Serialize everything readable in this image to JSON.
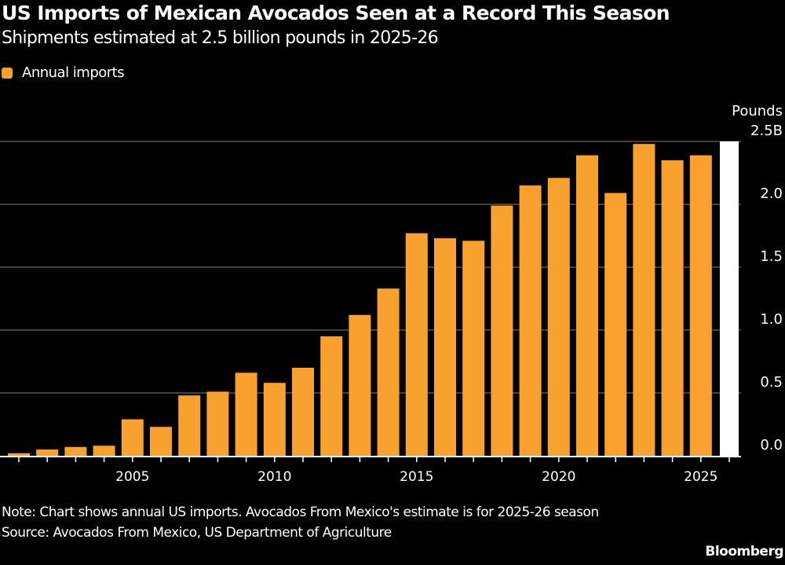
{
  "header": {
    "title": "US Imports of Mexican Avocados Seen at a Record This Season",
    "subtitle": "Shipments estimated at 2.5 billion pounds in 2025-26"
  },
  "footer": {
    "note": "Note: Chart shows annual US imports. Avocados From Mexico's estimate is for 2025-26 season",
    "source": "Source: Avocados From Mexico, US Department of Agriculture",
    "brand": "Bloomberg"
  },
  "colors": {
    "background": "#000000",
    "bar": "#f9a12e",
    "estimate_bar": "#ffffff",
    "grid": "#555555",
    "text": "#ffffff"
  },
  "chart_data": {
    "type": "bar",
    "title": "US Imports of Mexican Avocados Seen at a Record This Season",
    "subtitle": "Shipments estimated at 2.5 billion pounds in 2025-26",
    "xlabel": "",
    "ylabel": "Pounds",
    "y_unit_label": "Pounds",
    "ylim": [
      0,
      2.5
    ],
    "yticks": [
      0.0,
      0.5,
      1.0,
      1.5,
      2.0,
      2.5
    ],
    "ytick_labels": [
      "0.0",
      "0.5",
      "1.0",
      "1.5",
      "2.0",
      "2.5B"
    ],
    "xtick_labels": [
      "2005",
      "2010",
      "2015",
      "2020",
      "2025"
    ],
    "grid": true,
    "y_axis_position": "right",
    "legend": {
      "position": "top-left",
      "entries": [
        "Annual imports"
      ]
    },
    "categories": [
      2001,
      2002,
      2003,
      2004,
      2005,
      2006,
      2007,
      2008,
      2009,
      2010,
      2011,
      2012,
      2013,
      2014,
      2015,
      2016,
      2017,
      2018,
      2019,
      2020,
      2021,
      2022,
      2023,
      2024,
      2025
    ],
    "series": [
      {
        "name": "Annual imports",
        "values": [
          0.02,
          0.05,
          0.07,
          0.08,
          0.29,
          0.23,
          0.48,
          0.51,
          0.66,
          0.58,
          0.7,
          0.95,
          1.12,
          1.33,
          1.77,
          1.73,
          1.71,
          1.99,
          2.15,
          2.21,
          2.39,
          2.09,
          2.48,
          2.35,
          2.39
        ]
      }
    ],
    "estimate": {
      "label": "2025-26 estimate",
      "category": 2026,
      "value": 2.5
    }
  }
}
